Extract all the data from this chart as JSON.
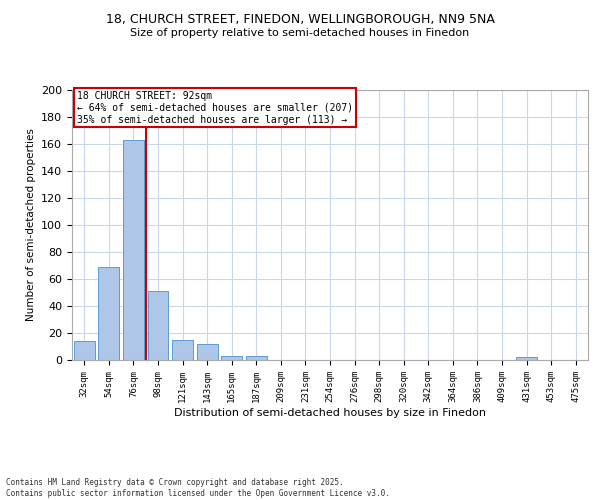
{
  "title_line1": "18, CHURCH STREET, FINEDON, WELLINGBOROUGH, NN9 5NA",
  "title_line2": "Size of property relative to semi-detached houses in Finedon",
  "xlabel": "Distribution of semi-detached houses by size in Finedon",
  "ylabel": "Number of semi-detached properties",
  "bar_labels": [
    "32sqm",
    "54sqm",
    "76sqm",
    "98sqm",
    "121sqm",
    "143sqm",
    "165sqm",
    "187sqm",
    "209sqm",
    "231sqm",
    "254sqm",
    "276sqm",
    "298sqm",
    "320sqm",
    "342sqm",
    "364sqm",
    "386sqm",
    "409sqm",
    "431sqm",
    "453sqm",
    "475sqm"
  ],
  "bar_values": [
    14,
    69,
    163,
    51,
    15,
    12,
    3,
    3,
    0,
    0,
    0,
    0,
    0,
    0,
    0,
    0,
    0,
    0,
    2,
    0,
    0
  ],
  "bar_color": "#aec6e8",
  "bar_edge_color": "#5b9bd5",
  "background_color": "#ffffff",
  "grid_color": "#c8d8ea",
  "vline_color": "#cc0000",
  "annotation_title": "18 CHURCH STREET: 92sqm",
  "annotation_line1": "← 64% of semi-detached houses are smaller (207)",
  "annotation_line2": "35% of semi-detached houses are larger (113) →",
  "annotation_box_color": "#cc0000",
  "footer_line1": "Contains HM Land Registry data © Crown copyright and database right 2025.",
  "footer_line2": "Contains public sector information licensed under the Open Government Licence v3.0.",
  "ylim": [
    0,
    200
  ],
  "yticks": [
    0,
    20,
    40,
    60,
    80,
    100,
    120,
    140,
    160,
    180,
    200
  ]
}
